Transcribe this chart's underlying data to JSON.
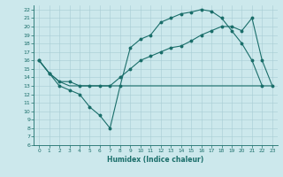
{
  "title": "",
  "xlabel": "Humidex (Indice chaleur)",
  "ylabel": "",
  "bg_color": "#cce8ec",
  "line_color": "#1a6e6a",
  "grid_color": "#a8cdd4",
  "ylim": [
    6,
    22.5
  ],
  "xlim": [
    -0.5,
    23.5
  ],
  "yticks": [
    6,
    7,
    8,
    9,
    10,
    11,
    12,
    13,
    14,
    15,
    16,
    17,
    18,
    19,
    20,
    21,
    22
  ],
  "xticks": [
    0,
    1,
    2,
    3,
    4,
    5,
    6,
    7,
    8,
    9,
    10,
    11,
    12,
    13,
    14,
    15,
    16,
    17,
    18,
    19,
    20,
    21,
    22,
    23
  ],
  "line1_x": [
    0,
    1,
    2,
    3,
    4,
    5,
    6,
    7,
    8,
    9,
    10,
    11,
    12,
    13,
    14,
    15,
    16,
    17,
    18,
    19,
    20,
    21,
    22
  ],
  "line1_y": [
    16,
    14.5,
    13,
    12.5,
    12,
    10.5,
    9.5,
    8.0,
    13,
    17.5,
    18.5,
    19,
    20.5,
    21,
    21.5,
    21.7,
    22,
    21.8,
    21,
    19.5,
    18,
    16,
    13
  ],
  "line2_x": [
    0,
    1,
    2,
    3,
    4,
    5,
    6,
    7,
    8,
    9,
    10,
    11,
    12,
    13,
    14,
    15,
    16,
    17,
    18,
    19,
    20,
    21,
    22,
    23
  ],
  "line2_y": [
    16,
    14.5,
    13.5,
    13,
    13,
    13,
    13,
    13,
    13,
    13,
    13,
    13,
    13,
    13,
    13,
    13,
    13,
    13,
    13,
    13,
    13,
    13,
    13,
    13
  ],
  "line3_x": [
    0,
    1,
    2,
    3,
    4,
    5,
    6,
    7,
    8,
    9,
    10,
    11,
    12,
    13,
    14,
    15,
    16,
    17,
    18,
    19,
    20,
    21,
    22,
    23
  ],
  "line3_y": [
    16,
    14.5,
    13.5,
    13.5,
    13,
    13,
    13,
    13,
    14,
    15,
    16,
    16.5,
    17,
    17.5,
    17.7,
    18.3,
    19,
    19.5,
    20,
    20,
    19.5,
    21,
    16,
    13
  ]
}
